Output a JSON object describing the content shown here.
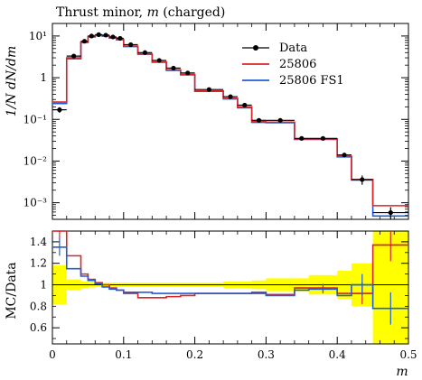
{
  "chart_data": [
    {
      "type": "line",
      "title": "Thrust minor, m (charged)",
      "title_parts": {
        "prefix": "Thrust minor, ",
        "var": "m",
        "suffix": " (charged)"
      },
      "ylabel": "1/N dN/dm",
      "xlabel": "",
      "yscale": "log",
      "xlim": [
        0,
        0.5
      ],
      "ylim": [
        0.0004,
        20
      ],
      "y_tick_labels": [
        "10¹",
        "1",
        "10⁻¹",
        "10⁻²",
        "10⁻³"
      ],
      "y_tick_values": [
        10,
        1,
        0.1,
        0.01,
        0.001
      ],
      "legend_position": "top-right",
      "bin_edges": [
        0,
        0.02,
        0.04,
        0.05,
        0.06,
        0.07,
        0.08,
        0.09,
        0.1,
        0.12,
        0.14,
        0.16,
        0.18,
        0.2,
        0.24,
        0.26,
        0.28,
        0.3,
        0.34,
        0.36,
        0.4,
        0.42,
        0.45,
        0.5
      ],
      "series": [
        {
          "name": "Data",
          "color": "#000000",
          "style": "points",
          "x": [
            0.01,
            0.03,
            0.045,
            0.055,
            0.065,
            0.075,
            0.085,
            0.095,
            0.11,
            0.13,
            0.15,
            0.17,
            0.19,
            0.22,
            0.25,
            0.27,
            0.29,
            0.32,
            0.35,
            0.38,
            0.41,
            0.435,
            0.475
          ],
          "values": [
            0.17,
            3.3,
            7.5,
            10.0,
            10.8,
            10.5,
            9.5,
            8.8,
            6.2,
            4.0,
            2.6,
            1.7,
            1.3,
            0.52,
            0.35,
            0.22,
            0.095,
            0.095,
            0.035,
            0.035,
            0.014,
            0.0036,
            0.00058
          ],
          "yerr_rel": [
            0.15,
            0.03,
            0.02,
            0.02,
            0.02,
            0.02,
            0.02,
            0.02,
            0.02,
            0.02,
            0.02,
            0.02,
            0.02,
            0.02,
            0.02,
            0.03,
            0.03,
            0.03,
            0.04,
            0.05,
            0.08,
            0.25,
            0.35
          ]
        },
        {
          "name": "25806",
          "color": "#d62728",
          "style": "step",
          "values": [
            0.26,
            3.0,
            7.2,
            9.8,
            10.4,
            10.2,
            9.1,
            8.3,
            5.7,
            3.7,
            2.4,
            1.55,
            1.2,
            0.48,
            0.32,
            0.2,
            0.088,
            0.086,
            0.034,
            0.034,
            0.013,
            0.0036,
            0.00085
          ]
        },
        {
          "name": "25806 FS1",
          "color": "#1f5fd6",
          "style": "step",
          "values": [
            0.24,
            2.85,
            7.0,
            9.5,
            10.2,
            9.9,
            8.9,
            8.1,
            5.6,
            3.65,
            2.35,
            1.5,
            1.17,
            0.47,
            0.31,
            0.19,
            0.085,
            0.083,
            0.033,
            0.033,
            0.0126,
            0.0035,
            0.00048
          ]
        }
      ]
    },
    {
      "type": "line",
      "ylabel": "MC/Data",
      "xlabel": "m",
      "xlim": [
        0,
        0.5
      ],
      "ylim": [
        0.45,
        1.5
      ],
      "x_tick_values": [
        0,
        0.1,
        0.2,
        0.3,
        0.4,
        0.5
      ],
      "x_tick_labels": [
        "0",
        "0.1",
        "0.2",
        "0.3",
        "0.4",
        "0.5"
      ],
      "y_tick_values": [
        0.6,
        0.8,
        1.0,
        1.2,
        1.4
      ],
      "y_tick_labels": [
        "0.6",
        "0.8",
        "1",
        "1.2",
        "1.4"
      ],
      "bin_edges": [
        0,
        0.02,
        0.04,
        0.05,
        0.06,
        0.07,
        0.08,
        0.09,
        0.1,
        0.12,
        0.14,
        0.16,
        0.18,
        0.2,
        0.24,
        0.26,
        0.28,
        0.3,
        0.34,
        0.36,
        0.4,
        0.42,
        0.45,
        0.5
      ],
      "data_uncertainty_rel": [
        0.18,
        0.05,
        0.03,
        0.025,
        0.02,
        0.02,
        0.02,
        0.02,
        0.02,
        0.02,
        0.02,
        0.02,
        0.02,
        0.02,
        0.03,
        0.03,
        0.04,
        0.06,
        0.06,
        0.09,
        0.13,
        0.2,
        0.55
      ],
      "uncertainty_band_color": "#ffff00",
      "series": [
        {
          "name": "25806",
          "color": "#d62728",
          "values": [
            1.52,
            1.27,
            1.1,
            1.05,
            1.02,
            1.0,
            0.97,
            0.95,
            0.92,
            0.88,
            0.88,
            0.89,
            0.9,
            0.92,
            0.92,
            0.92,
            0.93,
            0.91,
            0.97,
            0.97,
            0.92,
            0.92,
            1.37
          ],
          "yerr": [
            0.1,
            0.04,
            0.02,
            0.02,
            0.02,
            0.02,
            0.02,
            0.02,
            0.02,
            0.02,
            0.02,
            0.02,
            0.02,
            0.02,
            0.02,
            0.02,
            0.02,
            0.03,
            0.03,
            0.04,
            0.06,
            0.1,
            0.15
          ]
        },
        {
          "name": "25806 FS1",
          "color": "#1f5fd6",
          "values": [
            1.35,
            1.15,
            1.08,
            1.04,
            1.01,
            0.98,
            0.96,
            0.95,
            0.93,
            0.93,
            0.92,
            0.92,
            0.92,
            0.92,
            0.92,
            0.92,
            0.92,
            0.9,
            0.95,
            0.96,
            0.9,
            1.0,
            0.78
          ],
          "yerr": [
            0.08,
            0.04,
            0.02,
            0.02,
            0.02,
            0.02,
            0.02,
            0.02,
            0.02,
            0.02,
            0.02,
            0.02,
            0.02,
            0.02,
            0.02,
            0.02,
            0.02,
            0.03,
            0.03,
            0.04,
            0.06,
            0.1,
            0.15
          ]
        }
      ]
    }
  ]
}
